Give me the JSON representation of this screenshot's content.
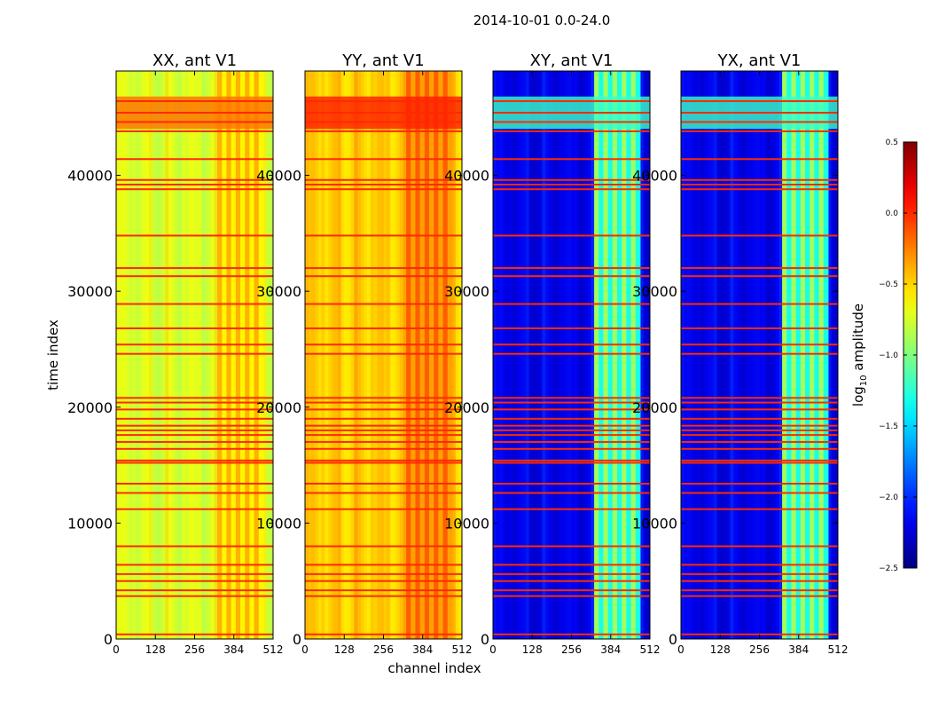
{
  "suptitle": "2014-10-01 0.0-24.0",
  "chart_data": {
    "type": "heatmap",
    "xlabel": "channel index",
    "ylabel": "time index",
    "xlim": [
      0,
      512
    ],
    "ylim": [
      0,
      49000
    ],
    "x_ticks": [
      "0",
      "128",
      "256",
      "384",
      "512"
    ],
    "x_tick_values": [
      0,
      128,
      256,
      384,
      512
    ],
    "y_ticks": [
      "0",
      "10000",
      "20000",
      "30000",
      "40000"
    ],
    "y_tick_values": [
      0,
      10000,
      20000,
      30000,
      40000
    ],
    "panels": [
      {
        "title": "XX, ant V1",
        "pol": "XX",
        "base_level": -0.75
      },
      {
        "title": "YY, ant V1",
        "pol": "YY",
        "base_level": -0.5
      },
      {
        "title": "XY, ant V1",
        "pol": "XY",
        "base_level": -2.2
      },
      {
        "title": "YX, ant V1",
        "pol": "YX",
        "base_level": -2.2
      }
    ],
    "flagged_level": 0.0,
    "rfi_channel_range": [
      330,
      480
    ],
    "flagged_rows": [
      400,
      3700,
      4200,
      5000,
      5600,
      6400,
      8000,
      11200,
      12600,
      13400,
      15200,
      15400,
      16400,
      17000,
      17600,
      18000,
      18400,
      19000,
      19800,
      20400,
      20800,
      24600,
      25400,
      26800,
      28900,
      31300,
      32000,
      34800,
      38800,
      39200,
      39600,
      41400,
      43800,
      44600,
      45400,
      46400
    ],
    "colorbar": {
      "label_main": "log",
      "label_sub": "10",
      "label_suffix": " amplitude",
      "range": [
        -2.5,
        0.5
      ],
      "ticks": [
        "0.5",
        "0.0",
        "−0.5",
        "−1.0",
        "−1.5",
        "−2.0",
        "−2.5"
      ],
      "tick_values": [
        0.5,
        0.0,
        -0.5,
        -1.0,
        -1.5,
        -2.0,
        -2.5
      ]
    }
  }
}
